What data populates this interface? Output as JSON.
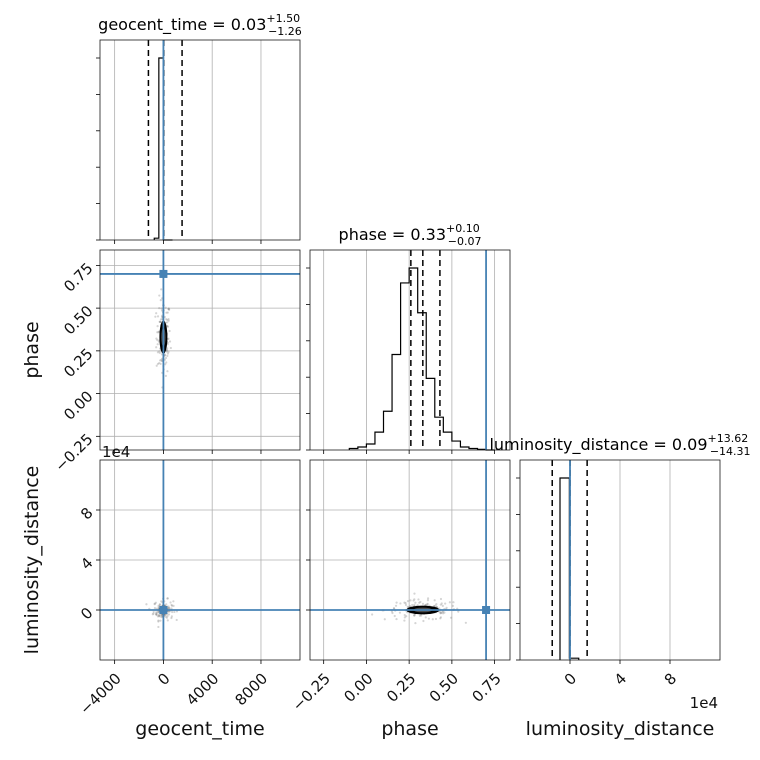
{
  "chart_data": {
    "type": "corner",
    "parameters": [
      "geocent_time",
      "phase",
      "luminosity_distance"
    ],
    "truths": {
      "geocent_time": 0,
      "phase": 0.7,
      "luminosity_distance": 0
    },
    "titles": [
      {
        "param": "geocent_time",
        "median": "0.03",
        "plus": "+1.50",
        "minus": "−1.26"
      },
      {
        "param": "phase",
        "median": "0.33",
        "plus": "+0.10",
        "minus": "−0.07"
      },
      {
        "param": "luminosity_distance",
        "median": "0.09",
        "plus": "+13.62",
        "minus": "−14.31"
      }
    ],
    "ranges": {
      "geocent_time": [
        -5200,
        11200
      ],
      "phase": [
        -0.33,
        0.84
      ],
      "luminosity_distance": [
        -40000,
        120000
      ]
    },
    "offset_labels": {
      "geocent_time_y": "1e4",
      "luminosity_distance_x": "1e4"
    },
    "ticks": {
      "geocent_time": [
        {
          "v": -4000,
          "label": "−4000"
        },
        {
          "v": 0,
          "label": "0"
        },
        {
          "v": 4000,
          "label": "4000"
        },
        {
          "v": 8000,
          "label": "8000"
        }
      ],
      "phase": [
        {
          "v": -0.25,
          "label": "−0.25"
        },
        {
          "v": 0.0,
          "label": "0.00"
        },
        {
          "v": 0.25,
          "label": "0.25"
        },
        {
          "v": 0.5,
          "label": "0.50"
        },
        {
          "v": 0.75,
          "label": "0.75"
        }
      ],
      "luminosity_distance": [
        {
          "v": 0,
          "label": "0"
        },
        {
          "v": 40000,
          "label": "4"
        },
        {
          "v": 80000,
          "label": "8"
        }
      ]
    },
    "histograms": {
      "geocent_time": {
        "edges": [
          -750,
          -375,
          0,
          375,
          750
        ],
        "counts": [
          0.01,
          1.0,
          0.0,
          0.0
        ]
      },
      "phase": {
        "edges": [
          -0.1,
          -0.05,
          0.0,
          0.05,
          0.1,
          0.15,
          0.2,
          0.25,
          0.3,
          0.35,
          0.4,
          0.45,
          0.5,
          0.55,
          0.6,
          0.65,
          0.7,
          0.75
        ],
        "counts": [
          0.005,
          0.01,
          0.02,
          0.06,
          0.13,
          0.32,
          0.56,
          0.61,
          0.46,
          0.24,
          0.11,
          0.06,
          0.03,
          0.01,
          0.005,
          0.002,
          0.0
        ]
      },
      "luminosity_distance": {
        "edges": [
          -8000,
          -500,
          7000
        ],
        "counts": [
          1.0,
          0.01
        ]
      }
    },
    "quantiles": {
      "geocent_time": [
        -1230,
        30,
        1530
      ],
      "phase": [
        0.26,
        0.33,
        0.43
      ],
      "luminosity_distance": [
        -14220,
        90,
        13710
      ]
    },
    "joint": {
      "phase_vs_geocent_time": {
        "center": [
          0,
          0.33
        ],
        "spread": [
          180,
          0.07
        ]
      },
      "luminosity_distance_vs_geocent_time": {
        "center": [
          0,
          0
        ],
        "spread": [
          250,
          2500
        ]
      },
      "luminosity_distance_vs_phase": {
        "center": [
          0.33,
          0
        ],
        "spread": [
          0.07,
          2500
        ]
      }
    }
  }
}
